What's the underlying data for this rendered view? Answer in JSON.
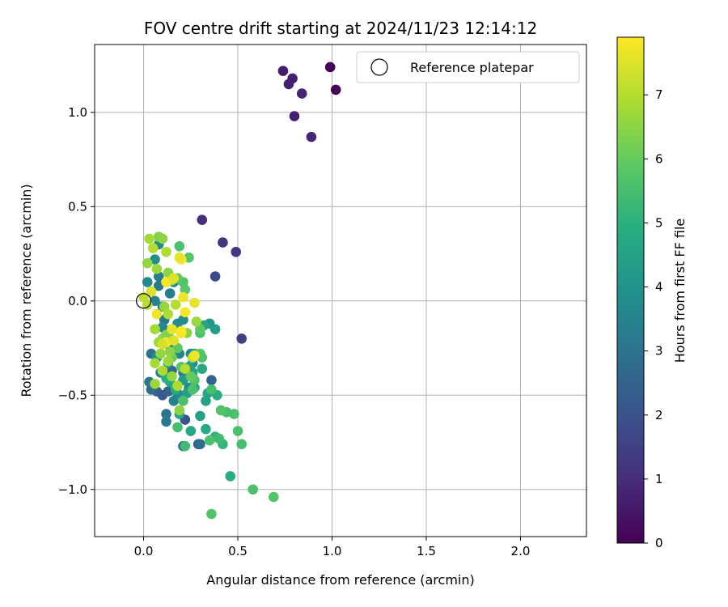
{
  "chart_data": {
    "type": "scatter",
    "title": "FOV centre drift starting at 2024/11/23 12:14:12",
    "xlabel": "Angular distance from reference (arcmin)",
    "ylabel": "Rotation from reference (arcmin)",
    "xlim": [
      -0.26,
      2.35
    ],
    "ylim": [
      -1.25,
      1.36
    ],
    "xticks": [
      0.0,
      0.5,
      1.0,
      1.5,
      2.0
    ],
    "xtick_labels": [
      "0.0",
      "0.5",
      "1.0",
      "1.5",
      "2.0"
    ],
    "yticks": [
      -1.0,
      -0.5,
      0.0,
      0.5,
      1.0
    ],
    "ytick_labels": [
      "−1.0",
      "−0.5",
      "0.0",
      "0.5",
      "1.0"
    ],
    "grid": true,
    "legend": {
      "placement": "top-right",
      "entries": [
        "Reference platepar"
      ]
    },
    "reference_point": {
      "x": 0.0,
      "y": 0.0
    },
    "colorbar": {
      "label": "Hours from first FF file",
      "range": [
        0,
        7.9
      ],
      "ticks": [
        0,
        1,
        2,
        3,
        4,
        5,
        6,
        7
      ],
      "tick_labels": [
        "0",
        "1",
        "2",
        "3",
        "4",
        "5",
        "6",
        "7"
      ],
      "colormap": "viridis"
    },
    "points": [
      [
        0.99,
        1.24,
        0.05
      ],
      [
        1.02,
        1.12,
        0.1
      ],
      [
        0.74,
        1.22,
        0.6
      ],
      [
        0.79,
        1.18,
        0.7
      ],
      [
        0.77,
        1.15,
        0.7
      ],
      [
        0.84,
        1.1,
        0.8
      ],
      [
        0.8,
        0.98,
        0.7
      ],
      [
        0.89,
        0.87,
        0.8
      ],
      [
        0.31,
        0.43,
        1.0
      ],
      [
        0.42,
        0.31,
        1.2
      ],
      [
        0.49,
        0.26,
        1.3
      ],
      [
        0.38,
        0.13,
        1.8
      ],
      [
        0.52,
        -0.2,
        1.4
      ],
      [
        0.36,
        -0.42,
        2.5
      ],
      [
        0.29,
        -0.76,
        2.3
      ],
      [
        0.22,
        -0.63,
        2.0
      ],
      [
        0.21,
        -0.77,
        2.6
      ],
      [
        0.12,
        -0.6,
        3.0
      ],
      [
        0.12,
        -0.64,
        3.2
      ],
      [
        0.07,
        -0.48,
        2.4
      ],
      [
        0.03,
        -0.43,
        3.1
      ],
      [
        0.04,
        -0.47,
        2.8
      ],
      [
        0.04,
        -0.28,
        3.0
      ],
      [
        0.09,
        -0.38,
        3.4
      ],
      [
        0.15,
        -0.37,
        2.7
      ],
      [
        0.21,
        -0.38,
        3.3
      ],
      [
        0.25,
        -0.28,
        3.6
      ],
      [
        0.1,
        -0.5,
        2.2
      ],
      [
        0.13,
        -0.48,
        2.5
      ],
      [
        0.16,
        -0.53,
        3.4
      ],
      [
        0.18,
        -0.49,
        3.7
      ],
      [
        0.24,
        -0.46,
        3.8
      ],
      [
        0.26,
        -0.33,
        3.9
      ],
      [
        0.3,
        -0.76,
        2.8
      ],
      [
        0.2,
        -0.17,
        3.5
      ],
      [
        0.11,
        -0.1,
        3.2
      ],
      [
        0.15,
        -0.15,
        3.8
      ],
      [
        0.1,
        -0.14,
        3.6
      ],
      [
        0.18,
        -0.12,
        3.9
      ],
      [
        0.06,
        0.0,
        3.5
      ],
      [
        0.08,
        0.08,
        3.2
      ],
      [
        0.02,
        0.1,
        3.7
      ],
      [
        0.06,
        0.22,
        3.9
      ],
      [
        0.08,
        0.3,
        3.6
      ],
      [
        0.14,
        0.04,
        3.3
      ],
      [
        0.1,
        -0.03,
        3.4
      ],
      [
        0.16,
        0.1,
        3.7
      ],
      [
        0.21,
        -0.1,
        3.8
      ],
      [
        0.08,
        0.13,
        3.3
      ],
      [
        0.14,
        -0.24,
        3.5
      ],
      [
        0.19,
        -0.28,
        3.6
      ],
      [
        0.07,
        -0.3,
        4.0
      ],
      [
        0.13,
        -0.33,
        4.1
      ],
      [
        0.35,
        -0.12,
        4.2
      ],
      [
        0.38,
        -0.15,
        4.4
      ],
      [
        0.32,
        -0.13,
        4.6
      ],
      [
        0.34,
        -0.49,
        4.7
      ],
      [
        0.39,
        -0.5,
        4.9
      ],
      [
        0.31,
        -0.36,
        4.8
      ],
      [
        0.27,
        -0.28,
        4.6
      ],
      [
        0.3,
        -0.61,
        4.5
      ],
      [
        0.33,
        -0.68,
        4.8
      ],
      [
        0.25,
        -0.69,
        4.7
      ],
      [
        0.38,
        -0.72,
        5.1
      ],
      [
        0.42,
        -0.76,
        5.2
      ],
      [
        0.46,
        -0.93,
        4.9
      ],
      [
        0.33,
        -0.53,
        4.5
      ],
      [
        0.27,
        -0.46,
        4.6
      ],
      [
        0.23,
        -0.49,
        4.4
      ],
      [
        0.26,
        -0.38,
        4.7
      ],
      [
        0.24,
        -0.35,
        4.5
      ],
      [
        0.21,
        -0.42,
        4.3
      ],
      [
        0.19,
        -0.6,
        4.6
      ],
      [
        0.17,
        -0.47,
        4.8
      ],
      [
        0.14,
        -0.43,
        4.7
      ],
      [
        0.12,
        -0.41,
        4.9
      ],
      [
        0.48,
        -0.6,
        5.6
      ],
      [
        0.44,
        -0.59,
        5.5
      ],
      [
        0.41,
        -0.58,
        5.7
      ],
      [
        0.36,
        -0.47,
        5.5
      ],
      [
        0.35,
        -0.74,
        5.6
      ],
      [
        0.4,
        -0.73,
        5.4
      ],
      [
        0.5,
        -0.69,
        5.6
      ],
      [
        0.52,
        -0.76,
        5.5
      ],
      [
        0.58,
        -1.0,
        5.6
      ],
      [
        0.69,
        -1.04,
        5.7
      ],
      [
        0.36,
        -1.13,
        5.7
      ],
      [
        0.22,
        -0.77,
        5.4
      ],
      [
        0.18,
        -0.67,
        5.5
      ],
      [
        0.21,
        -0.53,
        5.6
      ],
      [
        0.27,
        -0.42,
        5.7
      ],
      [
        0.26,
        -0.47,
        5.6
      ],
      [
        0.3,
        -0.28,
        5.8
      ],
      [
        0.31,
        -0.3,
        5.7
      ],
      [
        0.3,
        -0.17,
        5.6
      ],
      [
        0.3,
        -0.15,
        5.9
      ],
      [
        0.24,
        0.23,
        5.8
      ],
      [
        0.19,
        0.29,
        5.6
      ],
      [
        0.22,
        0.06,
        5.8
      ],
      [
        0.21,
        0.1,
        5.7
      ],
      [
        0.18,
        0.12,
        5.9
      ],
      [
        0.15,
        -0.3,
        6.1
      ],
      [
        0.2,
        -0.35,
        5.8
      ],
      [
        0.25,
        -0.4,
        6.0
      ],
      [
        0.18,
        -0.25,
        5.9
      ],
      [
        0.14,
        -0.2,
        6.0
      ],
      [
        0.08,
        0.34,
        6.4
      ],
      [
        0.1,
        0.33,
        6.5
      ],
      [
        0.03,
        0.33,
        6.8
      ],
      [
        0.05,
        0.28,
        7.0
      ],
      [
        0.12,
        0.26,
        6.9
      ],
      [
        0.02,
        0.2,
        6.6
      ],
      [
        0.07,
        0.17,
        6.7
      ],
      [
        0.13,
        0.15,
        6.5
      ],
      [
        0.15,
        0.11,
        6.8
      ],
      [
        0.04,
        0.05,
        6.9
      ],
      [
        0.0,
        0.02,
        7.1
      ],
      [
        0.02,
        -0.02,
        7.0
      ],
      [
        0.11,
        -0.03,
        6.6
      ],
      [
        0.13,
        -0.07,
        6.9
      ],
      [
        0.17,
        -0.02,
        7.0
      ],
      [
        0.06,
        -0.15,
        6.8
      ],
      [
        0.1,
        -0.2,
        6.6
      ],
      [
        0.08,
        -0.22,
        6.7
      ],
      [
        0.12,
        -0.18,
        6.4
      ],
      [
        0.14,
        -0.27,
        6.5
      ],
      [
        0.13,
        -0.32,
        6.7
      ],
      [
        0.09,
        -0.28,
        6.6
      ],
      [
        0.06,
        -0.33,
        6.8
      ],
      [
        0.1,
        -0.37,
        6.9
      ],
      [
        0.15,
        -0.4,
        6.6
      ],
      [
        0.06,
        -0.44,
        6.7
      ],
      [
        0.19,
        -0.58,
        6.5
      ],
      [
        0.18,
        -0.45,
        6.9
      ],
      [
        0.22,
        -0.36,
        7.0
      ],
      [
        0.26,
        -0.3,
        7.1
      ],
      [
        0.23,
        -0.17,
        6.5
      ],
      [
        0.28,
        -0.11,
        6.7
      ],
      [
        0.2,
        0.22,
        7.9
      ],
      [
        0.19,
        0.23,
        7.6
      ],
      [
        0.12,
        0.1,
        7.8
      ],
      [
        0.16,
        0.12,
        7.5
      ],
      [
        0.21,
        0.02,
        7.7
      ],
      [
        0.22,
        -0.06,
        7.8
      ],
      [
        0.27,
        -0.01,
        7.6
      ],
      [
        0.2,
        -0.16,
        7.8
      ],
      [
        0.15,
        -0.15,
        7.6
      ],
      [
        0.12,
        -0.22,
        7.9
      ],
      [
        0.07,
        -0.07,
        7.7
      ],
      [
        0.04,
        0.05,
        7.5
      ],
      [
        0.1,
        -0.23,
        7.4
      ],
      [
        0.27,
        -0.29,
        7.7
      ],
      [
        0.16,
        -0.21,
        7.5
      ],
      [
        0.2,
        -0.17,
        7.9
      ]
    ]
  }
}
